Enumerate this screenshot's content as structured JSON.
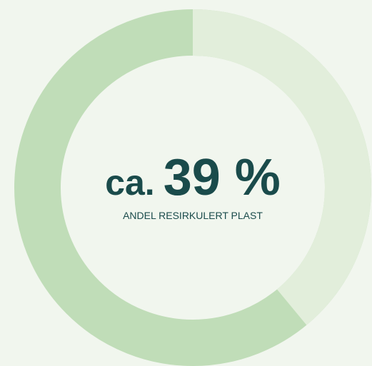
{
  "chart_data": {
    "type": "donut",
    "values": [
      39
    ],
    "value_labels": [
      "39 %"
    ],
    "prefix": "ca.",
    "subtitle": "ANDEL RESIRKULERT PLAST",
    "color": "#e2eedb",
    "track_color": "#c0ddb8"
  }
}
